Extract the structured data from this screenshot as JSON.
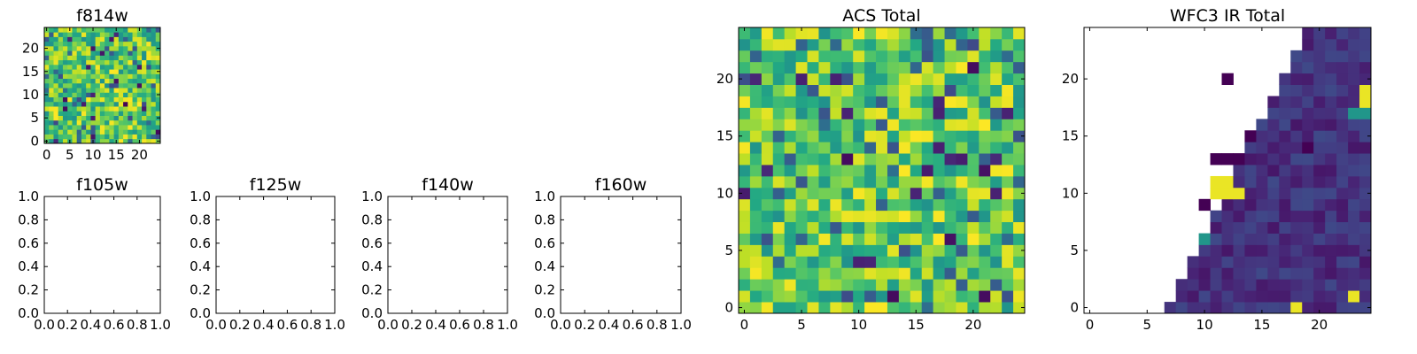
{
  "chart_data": [
    {
      "type": "heatmap",
      "title": "f814w",
      "xlabel": "",
      "ylabel": "",
      "grid_size": 25,
      "colormap": "viridis",
      "generator": "random",
      "seed": 814,
      "fill_min_x": 0,
      "xlim": [
        -0.5,
        24.5
      ],
      "ylim": [
        -0.5,
        24.5
      ],
      "xticks": [
        0,
        5,
        10,
        15,
        20
      ],
      "yticks": [
        0,
        5,
        10,
        15,
        20
      ],
      "xtick_labels": [
        "0",
        "5",
        "10",
        "15",
        "20"
      ],
      "ytick_labels": [
        "0",
        "5",
        "10",
        "15",
        "20"
      ],
      "grid": false
    },
    {
      "type": "heatmap",
      "title": "f105w",
      "xlabel": "",
      "ylabel": "",
      "empty": true,
      "xlim": [
        0,
        1
      ],
      "ylim": [
        0,
        1
      ],
      "xticks": [
        0,
        0.2,
        0.4,
        0.6,
        0.8,
        1.0
      ],
      "yticks": [
        0,
        0.2,
        0.4,
        0.6,
        0.8,
        1.0
      ],
      "xtick_labels": [
        "0.0",
        "0.2",
        "0.4",
        "0.6",
        "0.8",
        "1.0"
      ],
      "ytick_labels": [
        "0.0",
        "0.2",
        "0.4",
        "0.6",
        "0.8",
        "1.0"
      ],
      "grid": false
    },
    {
      "type": "heatmap",
      "title": "f125w",
      "xlabel": "",
      "ylabel": "",
      "empty": true,
      "xlim": [
        0,
        1
      ],
      "ylim": [
        0,
        1
      ],
      "xticks": [
        0,
        0.2,
        0.4,
        0.6,
        0.8,
        1.0
      ],
      "yticks": [
        0,
        0.2,
        0.4,
        0.6,
        0.8,
        1.0
      ],
      "xtick_labels": [
        "0.0",
        "0.2",
        "0.4",
        "0.6",
        "0.8",
        "1.0"
      ],
      "ytick_labels": [
        "0.0",
        "0.2",
        "0.4",
        "0.6",
        "0.8",
        "1.0"
      ],
      "grid": false
    },
    {
      "type": "heatmap",
      "title": "f140w",
      "xlabel": "",
      "ylabel": "",
      "empty": true,
      "xlim": [
        0,
        1
      ],
      "ylim": [
        0,
        1
      ],
      "xticks": [
        0,
        0.2,
        0.4,
        0.6,
        0.8,
        1.0
      ],
      "yticks": [
        0,
        0.2,
        0.4,
        0.6,
        0.8,
        1.0
      ],
      "xtick_labels": [
        "0.0",
        "0.2",
        "0.4",
        "0.6",
        "0.8",
        "1.0"
      ],
      "ytick_labels": [
        "0.0",
        "0.2",
        "0.4",
        "0.6",
        "0.8",
        "1.0"
      ],
      "grid": false
    },
    {
      "type": "heatmap",
      "title": "f160w",
      "xlabel": "",
      "ylabel": "",
      "empty": true,
      "xlim": [
        0,
        1
      ],
      "ylim": [
        0,
        1
      ],
      "xticks": [
        0,
        0.2,
        0.4,
        0.6,
        0.8,
        1.0
      ],
      "yticks": [
        0,
        0.2,
        0.4,
        0.6,
        0.8,
        1.0
      ],
      "xtick_labels": [
        "0.0",
        "0.2",
        "0.4",
        "0.6",
        "0.8",
        "1.0"
      ],
      "ytick_labels": [
        "0.0",
        "0.2",
        "0.4",
        "0.6",
        "0.8",
        "1.0"
      ],
      "grid": false
    },
    {
      "type": "heatmap",
      "title": "ACS Total",
      "xlabel": "",
      "ylabel": "",
      "grid_size": 25,
      "colormap": "viridis",
      "generator": "random",
      "seed": 2718,
      "fill_min_x": 0,
      "xlim": [
        -0.5,
        24.5
      ],
      "ylim": [
        -0.5,
        24.5
      ],
      "xticks": [
        0,
        5,
        10,
        15,
        20
      ],
      "yticks": [
        0,
        5,
        10,
        15,
        20
      ],
      "xtick_labels": [
        "0",
        "5",
        "10",
        "15",
        "20"
      ],
      "ytick_labels": [
        "0",
        "5",
        "10",
        "15",
        "20"
      ],
      "grid": false
    },
    {
      "type": "heatmap",
      "title": "WFC3 IR Total",
      "xlabel": "",
      "ylabel": "",
      "grid_size": 25,
      "colormap": "viridis",
      "generator": "wedge",
      "seed": 3141,
      "fill_min_x_at_y0": 7,
      "fill_slope": 0.5,
      "bright_cells": [
        [
          11,
          11
        ],
        [
          12,
          11
        ],
        [
          11,
          10
        ],
        [
          12,
          10
        ],
        [
          13,
          10
        ],
        [
          24,
          19
        ],
        [
          24,
          18
        ],
        [
          23,
          1
        ],
        [
          18,
          0
        ]
      ],
      "teal_cells": [
        [
          10,
          6
        ],
        [
          24,
          17
        ],
        [
          23,
          17
        ]
      ],
      "dark_cells": [
        [
          11,
          13
        ],
        [
          12,
          13
        ],
        [
          13,
          13
        ],
        [
          12,
          20
        ],
        [
          14,
          15
        ],
        [
          19,
          14
        ],
        [
          10,
          9
        ]
      ],
      "xlim": [
        -0.5,
        24.5
      ],
      "ylim": [
        -0.5,
        24.5
      ],
      "xticks": [
        0,
        5,
        10,
        15,
        20
      ],
      "yticks": [
        0,
        5,
        10,
        15,
        20
      ],
      "xtick_labels": [
        "0",
        "5",
        "10",
        "15",
        "20"
      ],
      "ytick_labels": [
        "0",
        "5",
        "10",
        "15",
        "20"
      ],
      "grid": false
    }
  ]
}
